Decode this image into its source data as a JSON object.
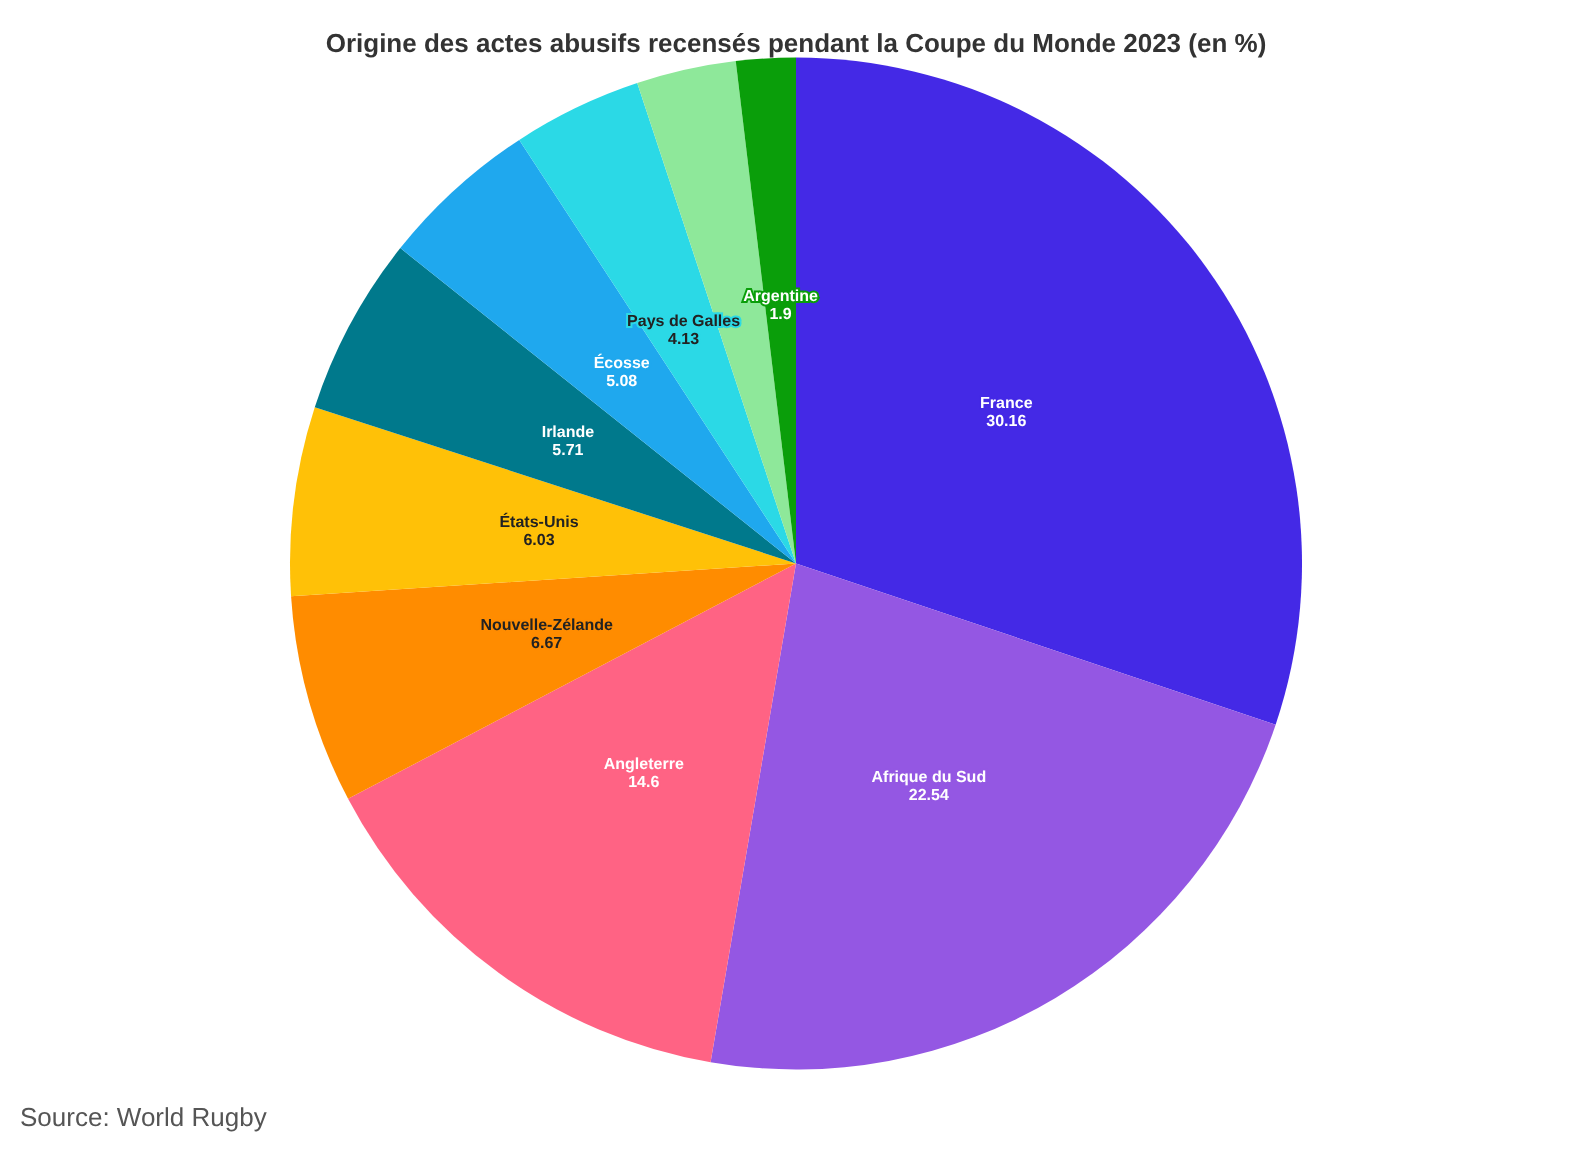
{
  "chart_data": {
    "type": "pie",
    "title": "Origine des actes abusifs recensés pendant la Coupe du Monde 2023 (en %)",
    "categories": [
      "France",
      "Afrique du Sud",
      "Angleterre",
      "Nouvelle-Zélande",
      "États-Unis",
      "Irlande",
      "Écosse",
      "Pays de Galles",
      null,
      "Argentine"
    ],
    "values": [
      30.16,
      22.54,
      14.6,
      6.67,
      6.03,
      5.71,
      5.08,
      4.13,
      3.18,
      1.9
    ],
    "value_labels": [
      "30.16",
      "22.54",
      "14.6",
      "6.67",
      "6.03",
      "5.71",
      "5.08",
      "4.13",
      null,
      "1.9"
    ],
    "colors": [
      "#4429e6",
      "#9457e3",
      "#ff6384",
      "#ff8c00",
      "#ffc107",
      "#00798c",
      "#1fa8ee",
      "#2bd9e6",
      "#8ee89a",
      "#0a9e0a"
    ],
    "annotations": [
      "Source: World Rugby"
    ],
    "legend": false
  }
}
